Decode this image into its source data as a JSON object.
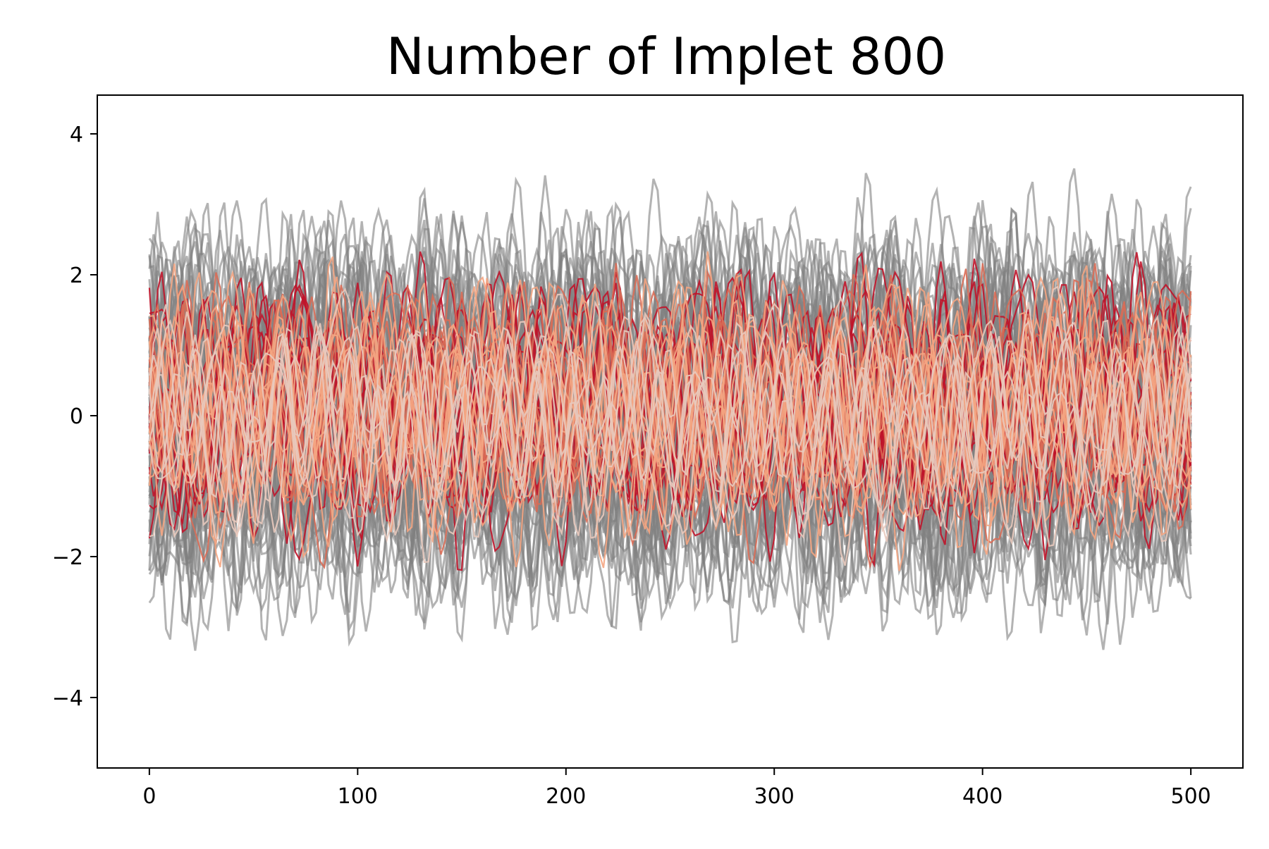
{
  "chart_data": {
    "type": "line",
    "title": "Number of Implet 800",
    "xlabel": "",
    "ylabel": "",
    "xlim": [
      -25,
      525
    ],
    "ylim": [
      -5,
      4.55
    ],
    "x_range": [
      0,
      500
    ],
    "xticks": [
      0,
      100,
      200,
      300,
      400,
      500
    ],
    "xtick_labels": [
      "0",
      "100",
      "200",
      "300",
      "400",
      "500"
    ],
    "yticks": [
      -4,
      -2,
      0,
      2,
      4
    ],
    "ytick_labels": [
      "−4",
      "−2",
      "0",
      "2",
      "4"
    ],
    "grid": false,
    "legend": "none",
    "series_groups": [
      {
        "role": "background",
        "color": "#808080",
        "opacity": 0.6,
        "count": 60,
        "band": [
          -3.2,
          3.2
        ]
      },
      {
        "role": "implet",
        "color": "#c0142a",
        "count": 14,
        "band": [
          -2.1,
          2.3
        ]
      },
      {
        "role": "implet",
        "color": "#d96c55",
        "count": 10,
        "band": [
          -2.1,
          2.3
        ]
      },
      {
        "role": "implet",
        "color": "#f4a582",
        "count": 12,
        "band": [
          -2.1,
          2.2
        ]
      },
      {
        "role": "implet",
        "color": "#e8c9bd",
        "count": 8,
        "band": [
          -2.0,
          2.1
        ]
      }
    ]
  }
}
